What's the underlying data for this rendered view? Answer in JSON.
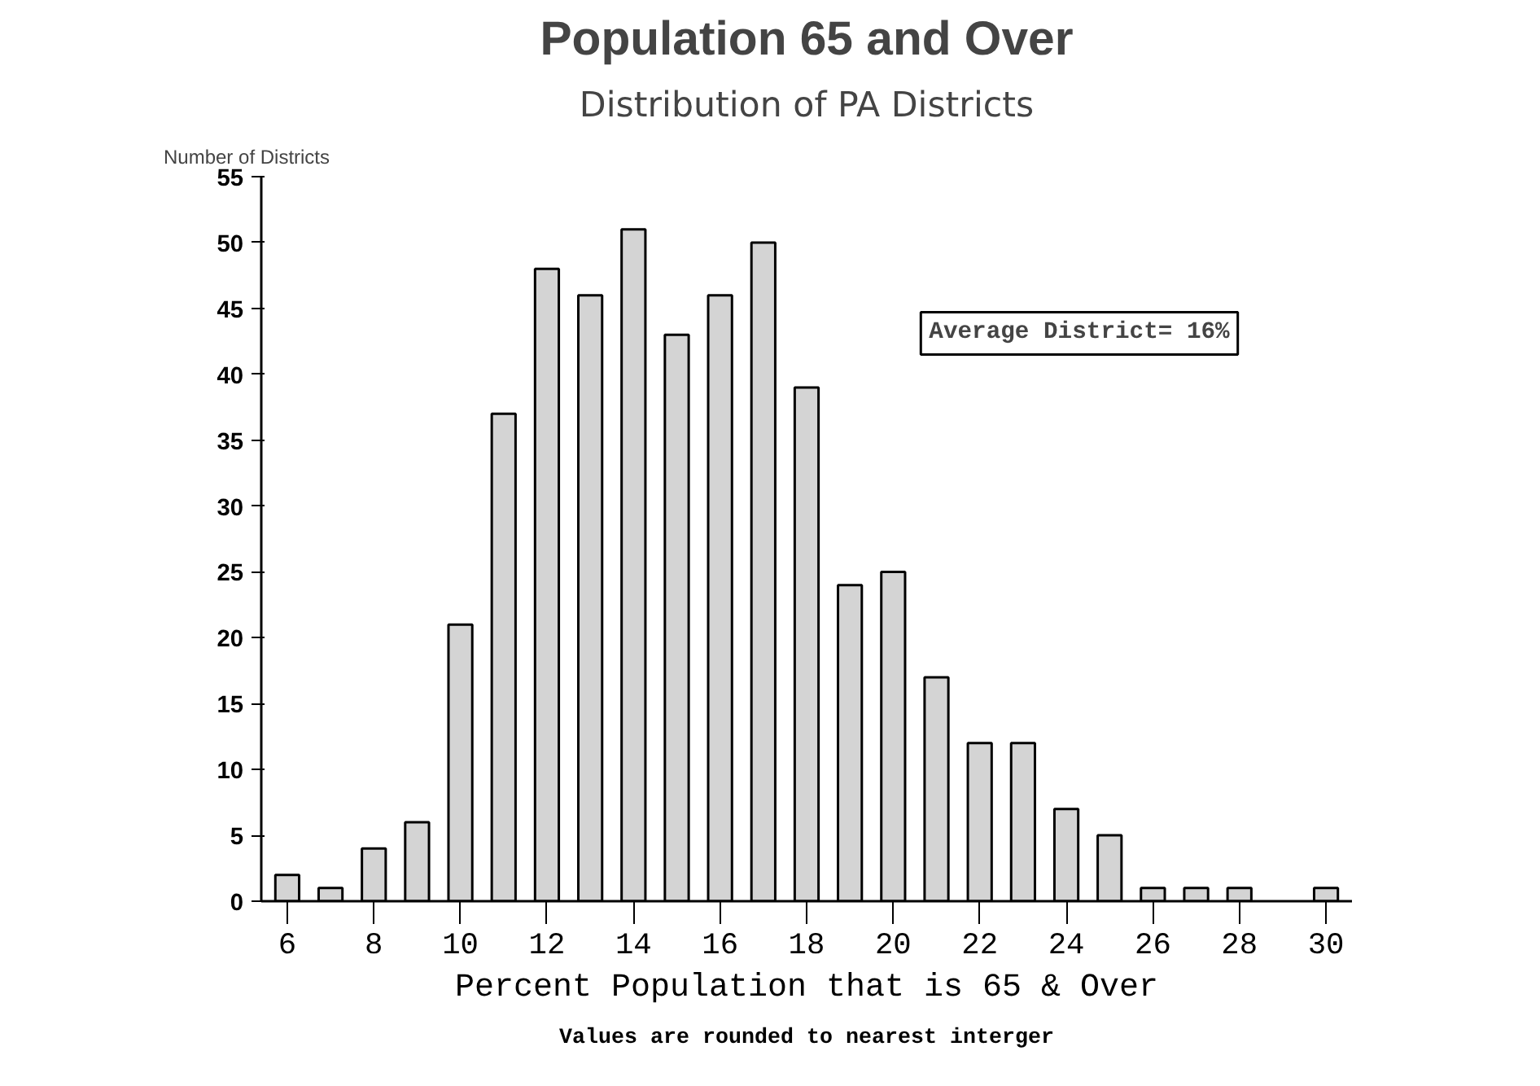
{
  "chart_data": {
    "type": "bar",
    "title": "Population 65 and Over",
    "subtitle": "Distribution of PA Districts",
    "xlabel": "Percent Population that is 65 & Over",
    "ylabel": "Number of Districts",
    "x": [
      6,
      7,
      8,
      9,
      10,
      11,
      12,
      13,
      14,
      15,
      16,
      17,
      18,
      19,
      20,
      21,
      22,
      23,
      24,
      25,
      26,
      27,
      28,
      29,
      30
    ],
    "values": [
      2,
      1,
      4,
      6,
      21,
      37,
      48,
      46,
      51,
      43,
      46,
      50,
      39,
      24,
      25,
      17,
      12,
      12,
      7,
      5,
      1,
      1,
      1,
      null,
      1
    ],
    "color": "#d4d4d4",
    "xlim": [
      5.4,
      30.6
    ],
    "xticks": [
      6,
      8,
      10,
      12,
      14,
      16,
      18,
      20,
      22,
      24,
      26,
      28,
      30
    ],
    "ylim": [
      0,
      55
    ],
    "yticks": [
      0,
      5,
      10,
      15,
      20,
      25,
      30,
      35,
      40,
      45,
      50,
      55
    ],
    "annotations": [
      "Average District= 16%",
      "Values are rounded to nearest interger"
    ],
    "grid": false
  }
}
